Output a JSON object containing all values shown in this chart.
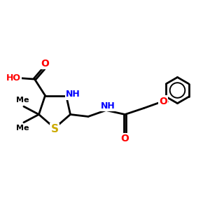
{
  "bg_color": "#ffffff",
  "bond_color": "#000000",
  "N_color": "#0000ff",
  "O_color": "#ff0000",
  "S_color": "#ccaa00",
  "figsize": [
    3.0,
    3.0
  ],
  "dpi": 100,
  "xlim": [
    0,
    10
  ],
  "ylim": [
    2,
    8
  ],
  "lw": 2.0
}
